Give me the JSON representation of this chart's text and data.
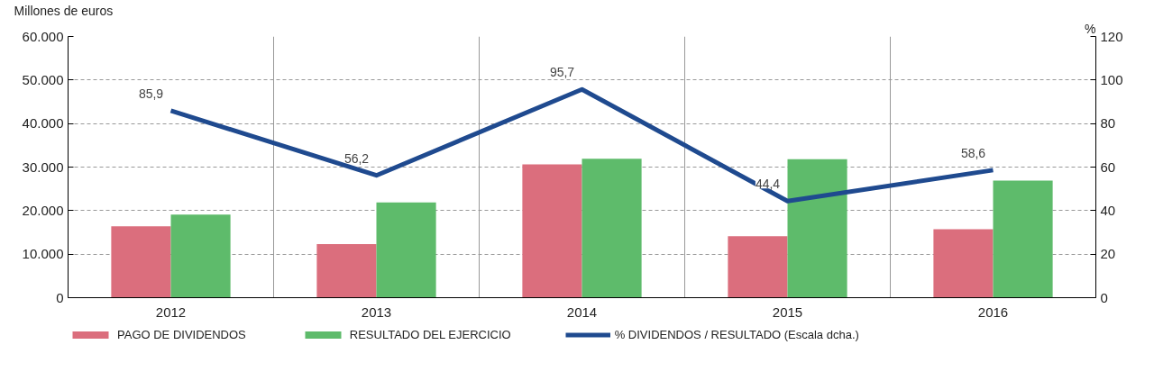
{
  "chart_data": {
    "type": "bar",
    "ylabel": "Millones de euros",
    "y2label": "%",
    "categories": [
      "2012",
      "2013",
      "2014",
      "2015",
      "2016"
    ],
    "series": [
      {
        "name": "PAGO DE DIVIDENDOS",
        "color": "#db6e7d",
        "values": [
          16400,
          12300,
          30600,
          14100,
          15700
        ]
      },
      {
        "name": "RESULTADO DEL EJERCICIO",
        "color": "#5ebb6b",
        "values": [
          19100,
          21900,
          31900,
          31800,
          26900
        ]
      },
      {
        "name": "% DIVIDENDOS / RESULTADO (Escala dcha.)",
        "type": "line",
        "axis": "y2",
        "color": "#1f4a8f",
        "values": [
          85.9,
          56.2,
          95.7,
          44.4,
          58.6
        ],
        "value_labels": [
          "85,9",
          "56,2",
          "95,7",
          "44,4",
          "58,6"
        ]
      }
    ],
    "ylim": [
      0,
      60000
    ],
    "yticks": [
      {
        "value": 0,
        "label": "0"
      },
      {
        "value": 10000,
        "label": "10.000"
      },
      {
        "value": 20000,
        "label": "20.000"
      },
      {
        "value": 30000,
        "label": "30.000"
      },
      {
        "value": 40000,
        "label": "40.000"
      },
      {
        "value": 50000,
        "label": "50.000"
      },
      {
        "value": 60000,
        "label": "60.000"
      }
    ],
    "y2lim": [
      0,
      120
    ],
    "y2ticks": [
      0,
      20,
      40,
      60,
      80,
      100,
      120
    ],
    "grid": true,
    "legend": "bottom"
  }
}
